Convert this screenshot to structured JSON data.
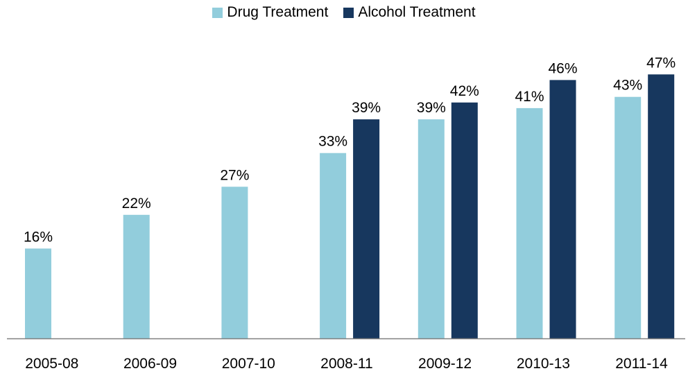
{
  "chart_data": {
    "type": "bar",
    "categories": [
      "2005-08",
      "2006-09",
      "2007-10",
      "2008-11",
      "2009-12",
      "2010-13",
      "2011-14"
    ],
    "series": [
      {
        "name": "Drug Treatment",
        "color": "#92CDDC",
        "values": [
          16,
          22,
          27,
          33,
          39,
          41,
          43
        ],
        "labels": [
          "16%",
          "22%",
          "27%",
          "33%",
          "39%",
          "41%",
          "43%"
        ]
      },
      {
        "name": "Alcohol Treatment",
        "color": "#17375E",
        "values": [
          null,
          null,
          null,
          39,
          42,
          46,
          47
        ],
        "labels": [
          null,
          null,
          null,
          "39%",
          "42%",
          "46%",
          "47%"
        ]
      }
    ],
    "ylim": [
      0,
      50
    ],
    "legend_position": "top-center",
    "grid": false
  }
}
